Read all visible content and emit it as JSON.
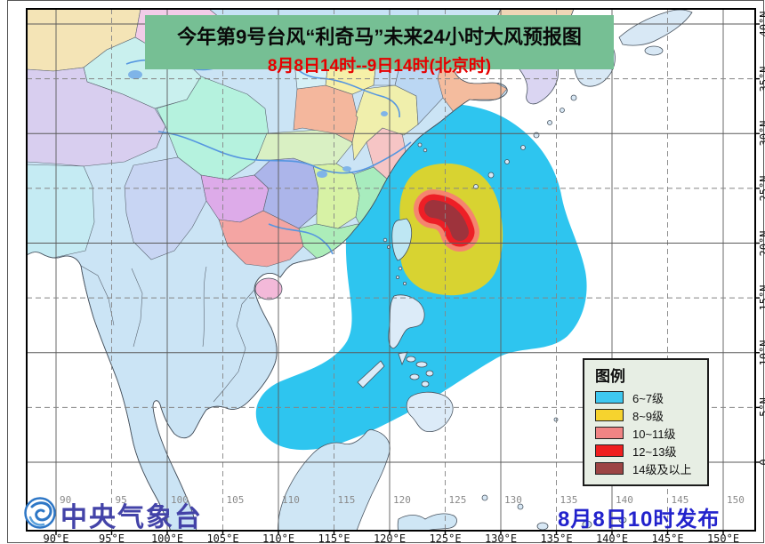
{
  "title": {
    "line1": "今年第9号台风“利奇马”未来24小时大风预报图",
    "line2": "8月8日14时--9日14时(北京时)"
  },
  "legend": {
    "title": "图例",
    "items": [
      {
        "label": "6~7级",
        "color": "#3FC8F0"
      },
      {
        "label": "8~9级",
        "color": "#F6D32E"
      },
      {
        "label": "10~11级",
        "color": "#F08484"
      },
      {
        "label": "12~13级",
        "color": "#EF1F1F"
      },
      {
        "label": "14级及以上",
        "color": "#9C4444"
      }
    ]
  },
  "footer": {
    "agency": "中央气象台",
    "issued": "8月8日10时发布"
  },
  "axes": {
    "lon_ticks": [
      {
        "deg": 90,
        "label": "90°E",
        "inner": "90"
      },
      {
        "deg": 95,
        "label": "95°E",
        "inner": "95"
      },
      {
        "deg": 100,
        "label": "100°E",
        "inner": "100"
      },
      {
        "deg": 105,
        "label": "105°E",
        "inner": "105"
      },
      {
        "deg": 110,
        "label": "110°E",
        "inner": "110"
      },
      {
        "deg": 115,
        "label": "115°E",
        "inner": "115"
      },
      {
        "deg": 120,
        "label": "120°E",
        "inner": "120"
      },
      {
        "deg": 125,
        "label": "125°E",
        "inner": "125"
      },
      {
        "deg": 130,
        "label": "130°E",
        "inner": "130"
      },
      {
        "deg": 135,
        "label": "135°E",
        "inner": "135"
      },
      {
        "deg": 140,
        "label": "140°E",
        "inner": "140"
      },
      {
        "deg": 145,
        "label": "145°E",
        "inner": "145"
      },
      {
        "deg": 150,
        "label": "150°E",
        "inner": "150"
      }
    ],
    "lat_ticks": [
      {
        "deg": 40,
        "label": "40°N"
      },
      {
        "deg": 35,
        "label": "35°N"
      },
      {
        "deg": 30,
        "label": "30°N"
      },
      {
        "deg": 25,
        "label": "25°N"
      },
      {
        "deg": 20,
        "label": "20°N"
      },
      {
        "deg": 15,
        "label": "15°N"
      },
      {
        "deg": 10,
        "label": "10°N"
      },
      {
        "deg": 5,
        "label": "5°N"
      },
      {
        "deg": 0,
        "label": "0"
      }
    ]
  },
  "map_colors": {
    "gale_6_7": "#2EC5EF",
    "gale_8_9": "#D8D331",
    "gale_10_11": "#F5846F",
    "gale_12_13": "#ED1F26",
    "gale_14_up": "#9E333C",
    "title_bg": "#76BF94",
    "subtitle_red": "#E60000",
    "issued_blue": "#2222CC",
    "agency_blue": "#4343A8",
    "legend_bg": "#E7EEE4"
  }
}
